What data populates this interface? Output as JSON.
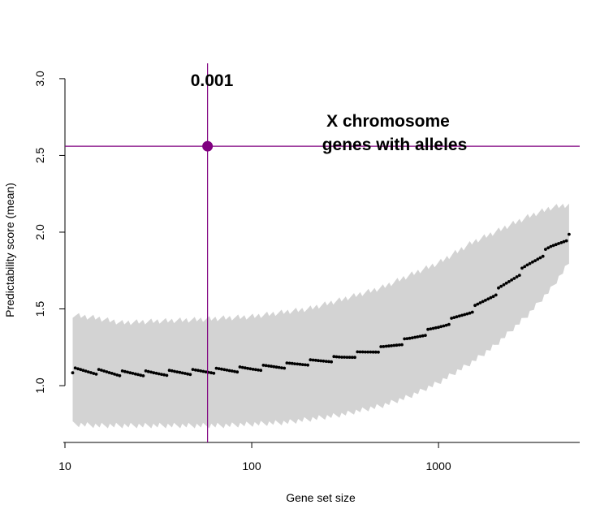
{
  "chart_data": {
    "type": "scatter",
    "xlabel": "Gene set size",
    "ylabel": "Predictability score (mean)",
    "x_scale": "log",
    "xlim": [
      10,
      5700
    ],
    "ylim": [
      0.63,
      3.1
    ],
    "x_ticks": [
      {
        "value": 10,
        "label": "10"
      },
      {
        "value": 100,
        "label": "100"
      },
      {
        "value": 1000,
        "label": "1000"
      }
    ],
    "y_ticks": [
      {
        "value": 1.0,
        "label": "1.0"
      },
      {
        "value": 1.5,
        "label": "1.5"
      },
      {
        "value": 2.0,
        "label": "2.0"
      },
      {
        "value": 2.5,
        "label": "2.5"
      },
      {
        "value": 3.0,
        "label": "3.0"
      }
    ],
    "grid": false,
    "band": {
      "description_color": "#d3d3d3",
      "x": [
        11,
        15,
        20,
        30,
        50,
        70,
        100,
        150,
        200,
        300,
        500,
        700,
        1000,
        1500,
        2000,
        3000,
        4000,
        5000
      ],
      "lower": [
        0.75,
        0.74,
        0.74,
        0.74,
        0.74,
        0.74,
        0.75,
        0.76,
        0.78,
        0.81,
        0.87,
        0.93,
        1.02,
        1.15,
        1.26,
        1.46,
        1.63,
        1.8
      ],
      "upper": [
        1.46,
        1.44,
        1.41,
        1.42,
        1.43,
        1.44,
        1.45,
        1.48,
        1.5,
        1.56,
        1.64,
        1.72,
        1.8,
        1.93,
        2.0,
        2.1,
        2.16,
        2.18
      ]
    },
    "mean_curve": {
      "x": [
        11,
        15,
        20,
        30,
        50,
        70,
        100,
        150,
        200,
        300,
        500,
        700,
        1000,
        1500,
        2000,
        3000,
        4000,
        5000
      ],
      "y": [
        1.1,
        1.09,
        1.08,
        1.08,
        1.09,
        1.1,
        1.11,
        1.13,
        1.15,
        1.18,
        1.24,
        1.3,
        1.38,
        1.49,
        1.6,
        1.78,
        1.9,
        1.97
      ],
      "color": "#000000"
    },
    "highlight": {
      "x": 58,
      "y": 2.56,
      "color": "#800080",
      "p_value_label": "0.001",
      "label_line1": "X chromosome",
      "label_line2": "genes with alleles"
    }
  }
}
